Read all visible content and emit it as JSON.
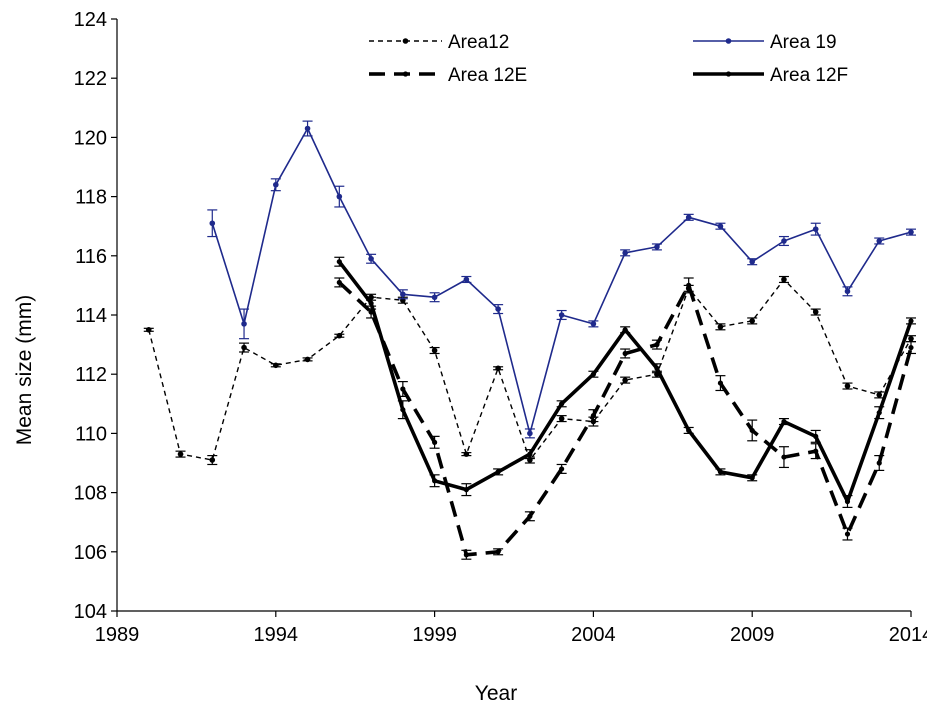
{
  "chart_data": {
    "type": "line",
    "title": "",
    "xlabel": "Year",
    "ylabel": "Mean size (mm)",
    "xlim": [
      1989,
      2014
    ],
    "ylim": [
      104,
      124
    ],
    "xticks": [
      1989,
      1994,
      1999,
      2004,
      2009,
      2014
    ],
    "yticks": [
      104,
      106,
      108,
      110,
      112,
      114,
      116,
      118,
      120,
      122,
      124
    ],
    "grid": false,
    "legend_position": "top",
    "series": [
      {
        "name": "Area12",
        "color": "#000000",
        "style": "dotted-dash",
        "x": [
          1990,
          1991,
          1992,
          1993,
          1994,
          1995,
          1996,
          1997,
          1998,
          1999,
          2000,
          2001,
          2002,
          2003,
          2004,
          2005,
          2006,
          2007,
          2008,
          2009,
          2010,
          2011,
          2012,
          2013,
          2014
        ],
        "y": [
          113.5,
          109.3,
          109.1,
          112.9,
          112.3,
          112.5,
          113.3,
          114.6,
          114.5,
          112.8,
          109.3,
          112.2,
          109.1,
          110.5,
          110.4,
          111.8,
          112.0,
          114.9,
          113.6,
          113.8,
          115.2,
          114.1,
          111.6,
          111.3,
          113.2
        ],
        "error": [
          0.05,
          0.1,
          0.15,
          0.15,
          0.05,
          0.05,
          0.05,
          0.1,
          0.1,
          0.1,
          0.05,
          0.05,
          0.1,
          0.1,
          0.15,
          0.1,
          0.1,
          0.1,
          0.1,
          0.1,
          0.1,
          0.1,
          0.1,
          0.1,
          0.1
        ]
      },
      {
        "name": "Area 19",
        "color": "#1f2a8c",
        "style": "solid-thin",
        "x": [
          1992,
          1993,
          1994,
          1995,
          1996,
          1997,
          1998,
          1999,
          2000,
          2001,
          2002,
          2003,
          2004,
          2005,
          2006,
          2007,
          2008,
          2009,
          2010,
          2011,
          2012,
          2013,
          2014
        ],
        "y": [
          117.1,
          113.7,
          118.4,
          120.3,
          118.0,
          115.9,
          114.7,
          114.6,
          115.2,
          114.2,
          110.0,
          114.0,
          113.7,
          116.1,
          116.3,
          117.3,
          117.0,
          115.8,
          116.5,
          116.9,
          114.8,
          116.5,
          116.8
        ],
        "error": [
          0.45,
          0.5,
          0.2,
          0.25,
          0.35,
          0.15,
          0.15,
          0.15,
          0.1,
          0.15,
          0.15,
          0.15,
          0.1,
          0.1,
          0.1,
          0.1,
          0.1,
          0.1,
          0.15,
          0.2,
          0.15,
          0.1,
          0.1
        ]
      },
      {
        "name": "Area 12E",
        "color": "#000000",
        "style": "dashed-thick",
        "x": [
          1996,
          1997,
          1998,
          1999,
          2000,
          2001,
          2002,
          2003,
          2004,
          2005,
          2006,
          2007,
          2008,
          2009,
          2010,
          2011,
          2012,
          2013,
          2014
        ],
        "y": [
          115.1,
          114.1,
          111.5,
          109.7,
          105.9,
          106.0,
          107.2,
          108.8,
          110.6,
          112.7,
          113.0,
          115.0,
          111.7,
          110.1,
          109.2,
          109.4,
          106.6,
          109.0,
          112.9
        ],
        "error": [
          0.15,
          0.2,
          0.25,
          0.2,
          0.15,
          0.1,
          0.15,
          0.15,
          0.2,
          0.15,
          0.15,
          0.25,
          0.25,
          0.35,
          0.35,
          0.25,
          0.2,
          0.25,
          0.2
        ]
      },
      {
        "name": "Area 12F",
        "color": "#000000",
        "style": "solid-thick",
        "x": [
          1996,
          1997,
          1998,
          1999,
          2000,
          2001,
          2002,
          2003,
          2004,
          2005,
          2006,
          2007,
          2008,
          2009,
          2010,
          2011,
          2012,
          2013,
          2014
        ],
        "y": [
          115.8,
          114.4,
          110.8,
          108.4,
          108.1,
          108.7,
          109.3,
          111.0,
          112.0,
          113.5,
          112.2,
          110.1,
          108.7,
          108.5,
          110.4,
          109.9,
          107.7,
          110.7,
          113.8
        ],
        "error": [
          0.15,
          0.2,
          0.3,
          0.2,
          0.2,
          0.1,
          0.15,
          0.1,
          0.1,
          0.1,
          0.15,
          0.1,
          0.1,
          0.1,
          0.1,
          0.2,
          0.2,
          0.2,
          0.1
        ]
      }
    ]
  }
}
